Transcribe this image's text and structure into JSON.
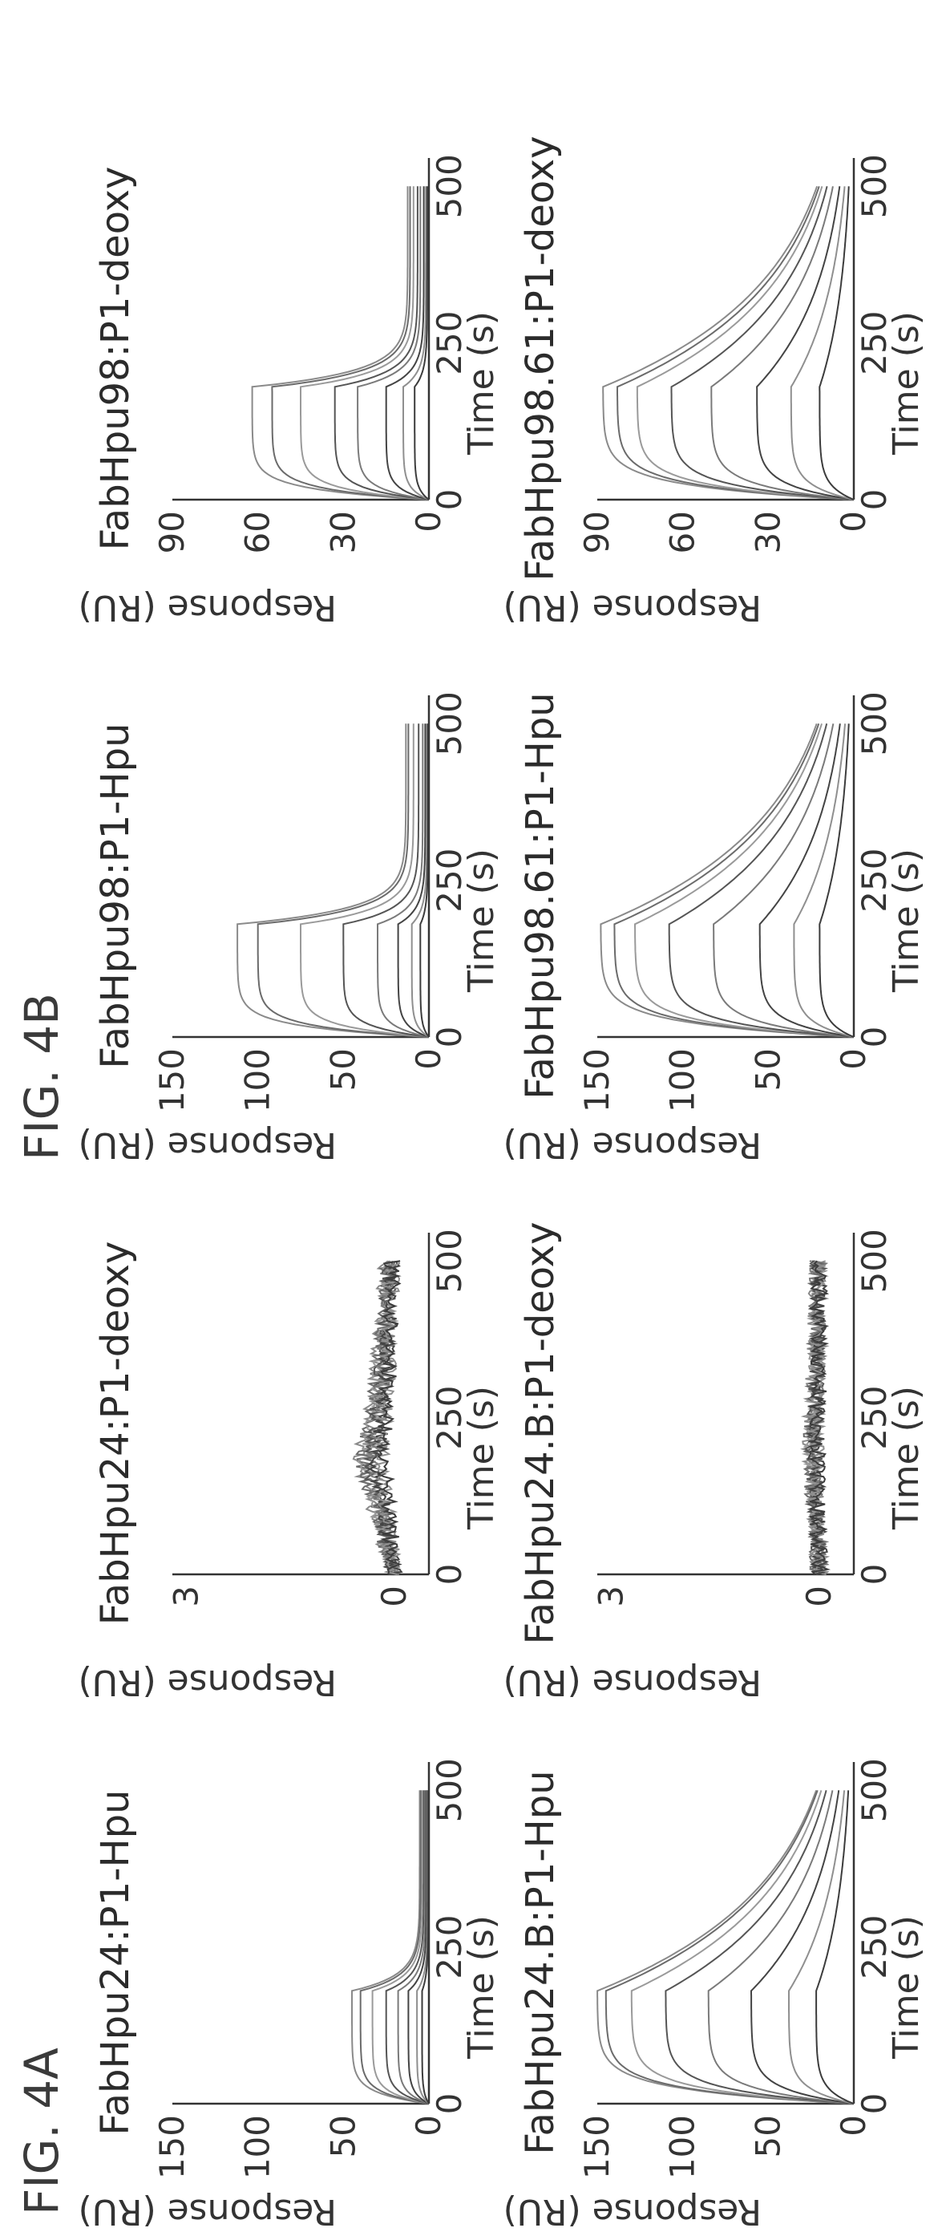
{
  "figures": [
    {
      "label": "FIG. 4A"
    },
    {
      "label": "FIG. 4B"
    }
  ],
  "chart_data": [
    {
      "type": "line",
      "title": "FabHpu24:P1-Hpu",
      "xlabel": "Time (s)",
      "ylabel": "Response (RU)",
      "xticks": [
        0,
        250,
        500
      ],
      "yticks": [
        0,
        50,
        100,
        150
      ],
      "xlim": [
        0,
        540
      ],
      "ylim": [
        0,
        150
      ],
      "shape": "fast",
      "assoc_end": 180,
      "series_max": [
        45,
        40,
        33,
        25,
        18,
        12,
        7,
        4
      ],
      "grid": false
    },
    {
      "type": "line",
      "title": "FabHpu24.B:P1-Hpu",
      "xlabel": "Time (s)",
      "ylabel": "Response (RU)",
      "xticks": [
        0,
        250,
        500
      ],
      "yticks": [
        0,
        50,
        100,
        150
      ],
      "xlim": [
        0,
        540
      ],
      "ylim": [
        0,
        150
      ],
      "shape": "slow",
      "assoc_end": 180,
      "series_max": [
        150,
        145,
        130,
        110,
        85,
        60,
        38,
        22
      ],
      "grid": false
    },
    {
      "type": "line",
      "title": "FabHpu24:P1-deoxy",
      "xlabel": "Time (s)",
      "ylabel": "Response (RU)",
      "xticks": [
        0,
        250,
        500
      ],
      "yticks": [
        0,
        3
      ],
      "xlim": [
        0,
        540
      ],
      "ylim": [
        -0.5,
        3.2
      ],
      "shape": "noise",
      "assoc_end": 180,
      "series_max": [
        0.5,
        0.45,
        0.4,
        0.35,
        0.3,
        0.25,
        0.2,
        0.15
      ],
      "grid": false
    },
    {
      "type": "line",
      "title": "FabHpu24.B:P1-deoxy",
      "xlabel": "Time (s)",
      "ylabel": "Response (RU)",
      "xticks": [
        0,
        250,
        500
      ],
      "yticks": [
        0,
        3
      ],
      "xlim": [
        0,
        540
      ],
      "ylim": [
        -0.5,
        3.2
      ],
      "shape": "noise",
      "assoc_end": 180,
      "series_max": [
        0.15,
        0.12,
        0.1,
        0.08,
        0.06,
        0.05,
        0.04,
        0.03
      ],
      "grid": false
    },
    {
      "type": "line",
      "title": "FabHpu98:P1-Hpu",
      "xlabel": "Time (s)",
      "ylabel": "Response (RU)",
      "xticks": [
        0,
        250,
        500
      ],
      "yticks": [
        0,
        50,
        100,
        150
      ],
      "xlim": [
        0,
        540
      ],
      "ylim": [
        0,
        150
      ],
      "shape": "fast",
      "assoc_end": 180,
      "series_max": [
        112,
        100,
        75,
        50,
        30,
        18,
        10,
        5
      ],
      "grid": false
    },
    {
      "type": "line",
      "title": "FabHpu98.61:P1-Hpu",
      "xlabel": "Time (s)",
      "ylabel": "Response (RU)",
      "xticks": [
        0,
        250,
        500
      ],
      "yticks": [
        0,
        50,
        100,
        150
      ],
      "xlim": [
        0,
        540
      ],
      "ylim": [
        0,
        150
      ],
      "shape": "slow",
      "assoc_end": 180,
      "series_max": [
        148,
        140,
        128,
        108,
        82,
        55,
        35,
        20
      ],
      "grid": false
    },
    {
      "type": "line",
      "title": "FabHpu98:P1-deoxy",
      "xlabel": "Time (s)",
      "ylabel": "Response (RU)",
      "xticks": [
        0,
        250,
        500
      ],
      "yticks": [
        0,
        30,
        60,
        90
      ],
      "xlim": [
        0,
        540
      ],
      "ylim": [
        0,
        90
      ],
      "shape": "fast",
      "assoc_end": 180,
      "series_max": [
        62,
        55,
        45,
        33,
        25,
        15,
        9,
        5
      ],
      "grid": false
    },
    {
      "type": "line",
      "title": "FabHpu98.61:P1-deoxy",
      "xlabel": "Time (s)",
      "ylabel": "Response (RU)",
      "xticks": [
        0,
        250,
        500
      ],
      "yticks": [
        0,
        30,
        60,
        90
      ],
      "xlim": [
        0,
        540
      ],
      "ylim": [
        0,
        90
      ],
      "shape": "slow",
      "assoc_end": 180,
      "series_max": [
        88,
        83,
        76,
        64,
        50,
        34,
        22,
        12
      ],
      "grid": false
    }
  ]
}
